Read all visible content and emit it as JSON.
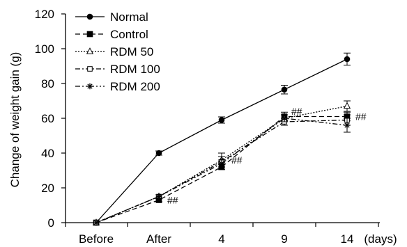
{
  "chart_data": {
    "type": "line",
    "ylabel": "Change of weight gain (g)",
    "x_unit_label": "(days)",
    "categories": [
      "Before",
      "After",
      "4",
      "9",
      "14"
    ],
    "ylim": [
      0,
      120
    ],
    "yticks": [
      0,
      20,
      40,
      60,
      80,
      100,
      120
    ],
    "legend_position": "top-left",
    "grid": false,
    "series": [
      {
        "name": "Normal",
        "values": [
          0,
          40,
          59,
          76.5,
          94
        ],
        "errors": [
          0,
          1.2,
          1.8,
          2.5,
          3.5
        ],
        "marker": "filled-circle",
        "dash": "solid"
      },
      {
        "name": "Control",
        "values": [
          0,
          13,
          32,
          61,
          61
        ],
        "errors": [
          0,
          1.0,
          1.5,
          2.5,
          2.5
        ],
        "marker": "filled-square",
        "dash": "dashed"
      },
      {
        "name": "RDM 50",
        "values": [
          0,
          15,
          36,
          60,
          67
        ],
        "errors": [
          0,
          1.0,
          4.0,
          2.0,
          3.0
        ],
        "marker": "open-triangle",
        "dash": "dotted"
      },
      {
        "name": "RDM 100",
        "values": [
          0,
          15,
          35,
          58,
          59
        ],
        "errors": [
          0,
          1.0,
          3.0,
          2.0,
          3.0
        ],
        "marker": "open-square",
        "dash": "dashdot"
      },
      {
        "name": "RDM 200",
        "values": [
          0,
          15,
          34,
          60,
          56
        ],
        "errors": [
          0,
          1.0,
          2.0,
          2.0,
          4.0
        ],
        "marker": "asterisk",
        "dash": "dashdotdot"
      }
    ],
    "annotations": [
      {
        "text": "##",
        "category": "After",
        "y": 13
      },
      {
        "text": "##",
        "category": "4",
        "y": 36
      },
      {
        "text": "##",
        "category": "9",
        "y": 64
      },
      {
        "text": "##",
        "category": "14",
        "y": 61
      }
    ]
  }
}
